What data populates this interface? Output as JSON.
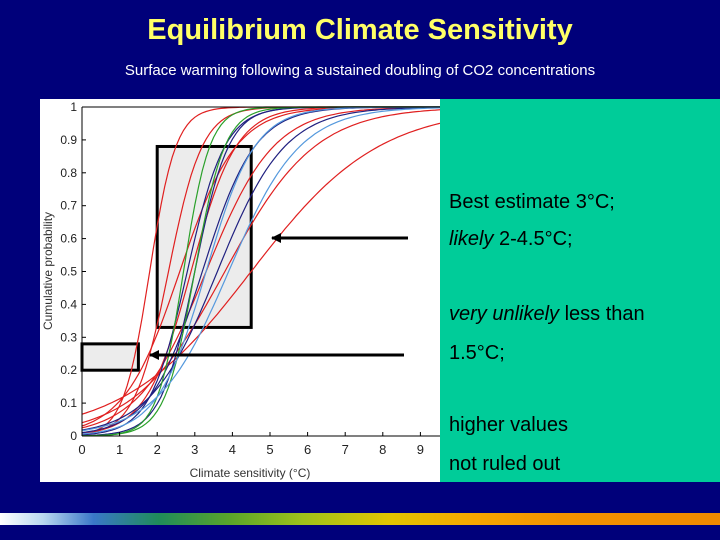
{
  "title": "Equilibrium Climate Sensitivity",
  "subtitle": "Surface warming following a sustained doubling of CO2 concentrations",
  "notes": {
    "line1": "Best estimate 3°C;",
    "line2_italic": "likely",
    "line2_rest": " 2-4.5°C;",
    "line3_italic": "very unlikely",
    "line3_rest": " less than",
    "line4": "1.5°C;",
    "line5": "higher values",
    "line6": "not ruled out"
  },
  "colors": {
    "background": "#00007a",
    "title": "#ffff66",
    "note_panel": "#00cc99",
    "series": [
      "#e02020",
      "#202080",
      "#2aa02a",
      "#5599dd"
    ]
  },
  "chart_data": {
    "type": "line",
    "xlabel": "Climate sensitivity (°C)",
    "ylabel": "Cumulative probability",
    "xlim": [
      0,
      10
    ],
    "ylim": [
      0,
      1
    ],
    "xticks": [
      "0",
      "1",
      "2",
      "3",
      "4",
      "5",
      "6",
      "7",
      "8",
      "9"
    ],
    "yticks": [
      "0",
      "0.1",
      "0.2",
      "0.3",
      "0.4",
      "0.5",
      "0.6",
      "0.7",
      "0.8",
      "0.9",
      "1"
    ],
    "grid": false,
    "series": [
      {
        "color": "#e02020",
        "median": 1.8,
        "spread": 0.35
      },
      {
        "color": "#e02020",
        "median": 2.3,
        "spread": 0.45
      },
      {
        "color": "#e02020",
        "median": 2.9,
        "spread": 0.6
      },
      {
        "color": "#e02020",
        "median": 3.3,
        "spread": 0.9
      },
      {
        "color": "#e02020",
        "median": 3.8,
        "spread": 1.2
      },
      {
        "color": "#e02020",
        "median": 4.5,
        "spread": 1.7
      },
      {
        "color": "#e02020",
        "median": 2.6,
        "spread": 0.75
      },
      {
        "color": "#202080",
        "median": 2.8,
        "spread": 0.5
      },
      {
        "color": "#202080",
        "median": 3.2,
        "spread": 0.7
      },
      {
        "color": "#202080",
        "median": 3.6,
        "spread": 0.9
      },
      {
        "color": "#202080",
        "median": 3.0,
        "spread": 0.45
      },
      {
        "color": "#2aa02a",
        "median": 2.7,
        "spread": 0.35
      },
      {
        "color": "#2aa02a",
        "median": 3.0,
        "spread": 0.4
      },
      {
        "color": "#5599dd",
        "median": 3.3,
        "spread": 0.65
      },
      {
        "color": "#5599dd",
        "median": 3.9,
        "spread": 0.95
      }
    ],
    "highlight_boxes": [
      {
        "label": "likely range",
        "x_range": [
          2,
          4.5
        ],
        "y_range": [
          0.33,
          0.88
        ]
      },
      {
        "label": "very unlikely below",
        "x_range": [
          0,
          1.5
        ],
        "y_range": [
          0.2,
          0.28
        ]
      }
    ]
  }
}
